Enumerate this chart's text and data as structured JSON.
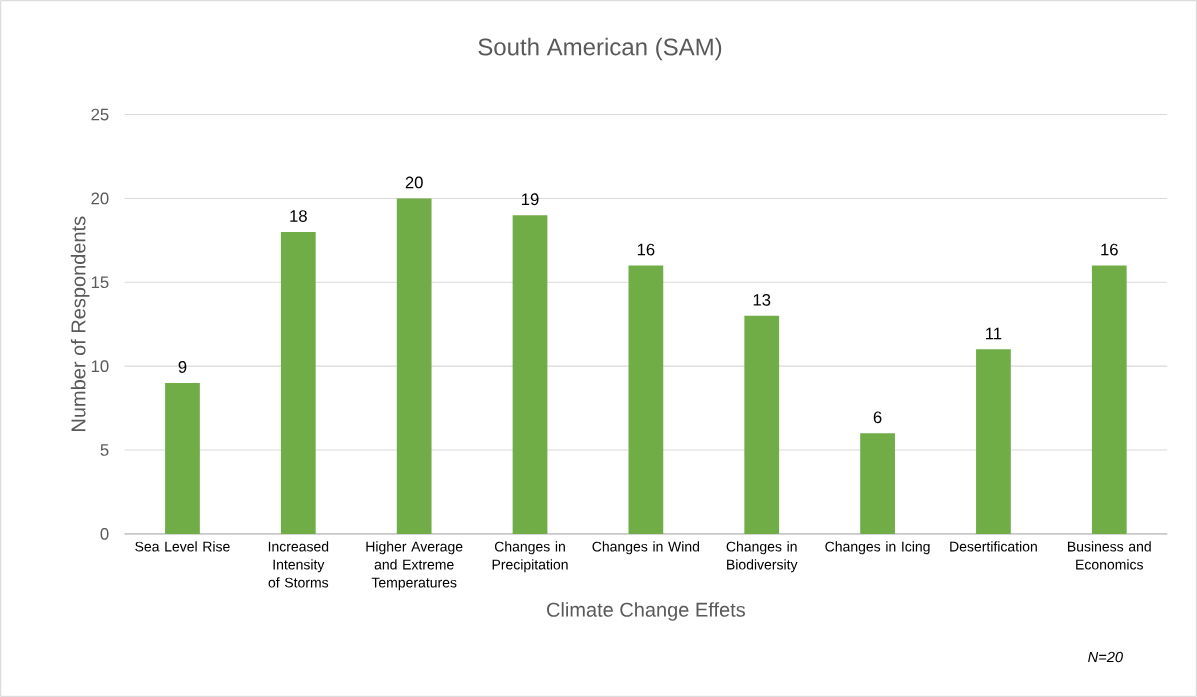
{
  "chart_data": {
    "type": "bar",
    "title": "South American (SAM)",
    "xlabel": "Climate Change Effets",
    "ylabel": "Number of Respondents",
    "categories": [
      "Sea Level Rise",
      "Increased Intensity of Storms",
      "Higher Average and Extreme Temperatures",
      "Changes in Precipitation",
      "Changes in Wind",
      "Changes in Biodiversity",
      "Changes in Icing",
      "Desertification",
      "Business and Economics"
    ],
    "values": [
      9,
      18,
      20,
      19,
      16,
      13,
      6,
      11,
      16
    ],
    "color": "#70ad47",
    "ylim": [
      0,
      25
    ],
    "yticks": [
      0,
      5,
      10,
      15,
      20,
      25
    ],
    "grid": "y",
    "data_labels": true,
    "annotations": [
      "N=20"
    ]
  }
}
